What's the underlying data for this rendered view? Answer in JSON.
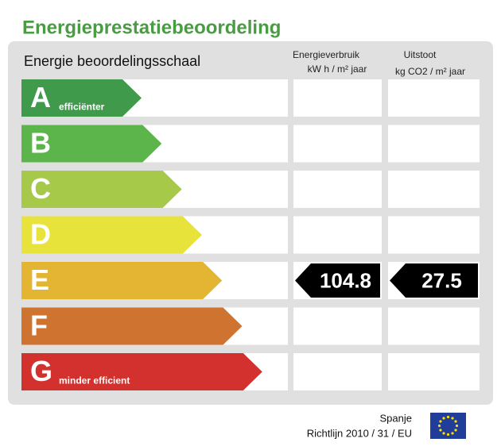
{
  "title": "Energieprestatiebeoordeling",
  "scale_label": "Energie beoordelingsschaal",
  "columns": [
    {
      "title": "Energieverbruik",
      "unit": "kW h / m² jaar"
    },
    {
      "title": "Uitstoot",
      "unit": "kg CO2 / m² jaar"
    }
  ],
  "ratings": [
    {
      "letter": "A",
      "label": "efficiënter",
      "color": "#3f9a4b"
    },
    {
      "letter": "B",
      "color": "#5bb54a"
    },
    {
      "letter": "C",
      "color": "#a6c94a"
    },
    {
      "letter": "D",
      "color": "#e8e33a"
    },
    {
      "letter": "E",
      "color": "#e3b532",
      "values": [
        104.8,
        27.5
      ]
    },
    {
      "letter": "F",
      "color": "#cf7430"
    },
    {
      "letter": "G",
      "label": "minder efficient",
      "color": "#d2312d"
    }
  ],
  "footer": {
    "country": "Spanje",
    "directive": "Richtlijn 2010 / 31 / EU"
  }
}
